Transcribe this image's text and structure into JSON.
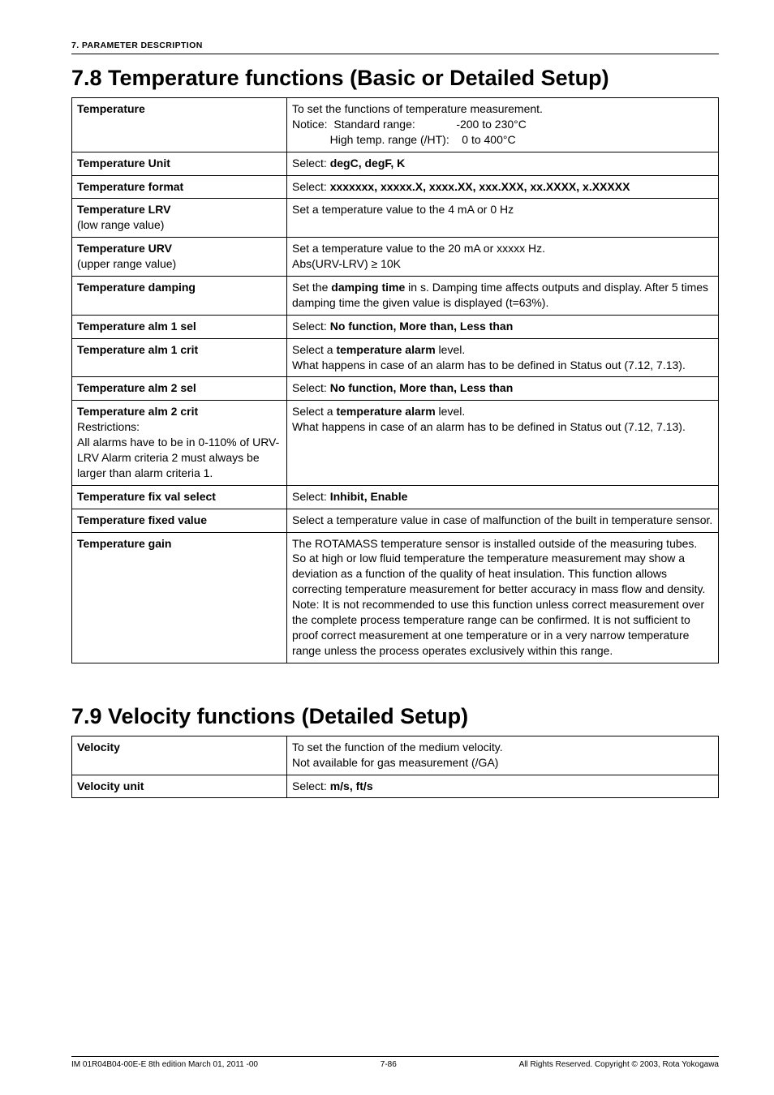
{
  "page": {
    "running_head": "7. PARAMETER DESCRIPTION",
    "section78_title": "7.8  Temperature functions (Basic or Detailed Setup)",
    "section79_title": "7.9  Velocity functions (Detailed Setup)",
    "footer_left": "IM 01R04B04-00E-E    8th edition March 01, 2011 -00",
    "footer_center": "7-86",
    "footer_right": "All Rights Reserved. Copyright © 2003, Rota Yokogawa"
  },
  "t78": {
    "r0c0": "Temperature",
    "r0c1a": "To set the functions of temperature measurement.",
    "r0c1b": "Notice:  Standard range:             -200 to 230°C",
    "r0c1c": "            High temp. range (/HT):    0 to 400°C",
    "r1c0": "Temperature Unit",
    "r1c1a": "Select: ",
    "r1c1b": "degC, degF, K",
    "r2c0": "Temperature format",
    "r2c1a": "Select: ",
    "r2c1b": "xxxxxxx, xxxxx.X, xxxx.XX, xxx.XXX, xx.XXXX, x.XXXXX",
    "r3c0a": "Temperature LRV",
    "r3c0b": "(low range value)",
    "r3c1": "Set a temperature value to the 4 mA or 0 Hz",
    "r4c0a": "Temperature URV",
    "r4c0b": "(upper range value)",
    "r4c1a": "Set a temperature value to the 20 mA or xxxxx Hz.",
    "r4c1b": "Abs(URV-LRV) ≥ 10K",
    "r5c0": "Temperature damping",
    "r5c1a": "Set the ",
    "r5c1b": "damping time",
    "r5c1c": " in s. Damping time affects outputs and display. After 5 times damping time the given value is displayed (t=63%).",
    "r6c0": "Temperature alm 1 sel",
    "r6c1a": "Select: ",
    "r6c1b": "No function, More than, Less than",
    "r7c0": "Temperature alm 1 crit",
    "r7c1a": "Select a ",
    "r7c1b": "temperature alarm",
    "r7c1c": " level.",
    "r7c1d": "What happens in case of an alarm has to be defined in Status out (7.12, 7.13).",
    "r8c0": "Temperature alm 2 sel",
    "r8c1a": "Select: ",
    "r8c1b": "No function, More than, Less than",
    "r9c0a": "Temperature alm 2 crit",
    "r9c0b": "Restrictions:",
    "r9c0c": "All alarms have to be in 0-110% of URV-LRV Alarm criteria 2 must always be larger than alarm criteria 1.",
    "r9c1a": "Select a ",
    "r9c1b": "temperature alarm",
    "r9c1c": " level.",
    "r9c1d": "What happens in case of an alarm has to be defined in Status out (7.12, 7.13).",
    "r10c0": "Temperature fix val select",
    "r10c1a": "Select: ",
    "r10c1b": "Inhibit, Enable",
    "r11c0": "Temperature fixed value",
    "r11c1": "Select a temperature value in case of malfunction of the built in temperature sensor.",
    "r12c0": "Temperature gain",
    "r12c1a": "The ROTAMASS temperature sensor is installed outside of the measuring tubes. So at high or low fluid temperature the temperature measurement may show a deviation as a function of the quality of heat insulation. This function allows correcting temperature measurement for better accuracy in mass flow and density.",
    "r12c1b": "Note: It is not recommended to use this function unless correct measurement over the complete process temperature range can be confirmed. It is not sufficient to proof correct measurement at one temperature or in a very narrow temperature range unless the process operates exclusively within this range."
  },
  "t79": {
    "r0c0": "Velocity",
    "r0c1a": "To set the function of the medium velocity.",
    "r0c1b": "Not available for gas measurement (/GA)",
    "r1c0": "Velocity unit",
    "r1c1a": "Select: ",
    "r1c1b": "m/s, ft/s"
  }
}
